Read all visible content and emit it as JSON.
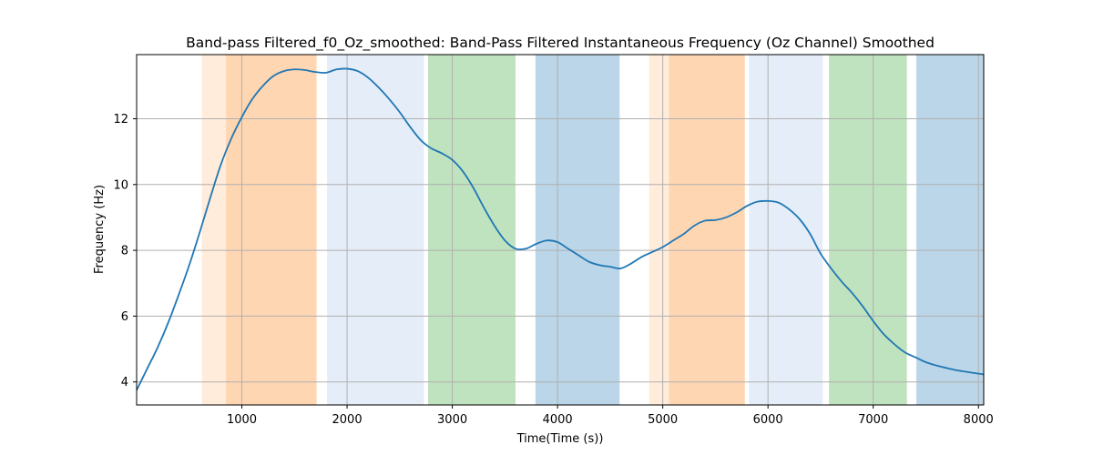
{
  "chart_data": {
    "type": "line",
    "title": "Band-pass Filtered_f0_Oz_smoothed: Band-Pass Filtered Instantaneous Frequency (Oz Channel) Smoothed",
    "xlabel": "Time(Time (s))",
    "ylabel": "Frequency (Hz)",
    "xlim": [
      0,
      8050
    ],
    "ylim": [
      3.3,
      13.95
    ],
    "xticks": [
      1000,
      2000,
      3000,
      4000,
      5000,
      6000,
      7000,
      8000
    ],
    "yticks": [
      4,
      6,
      8,
      10,
      12
    ],
    "grid": true,
    "line_color": "#1f77b4",
    "bands": [
      {
        "start": 620,
        "end": 850,
        "color": "#ff7f0e",
        "opacity": 0.15
      },
      {
        "start": 850,
        "end": 1710,
        "color": "#ff7f0e",
        "opacity": 0.32
      },
      {
        "start": 1810,
        "end": 2730,
        "color": "#aec7e8",
        "opacity": 0.32
      },
      {
        "start": 2770,
        "end": 3600,
        "color": "#2ca02c",
        "opacity": 0.3
      },
      {
        "start": 3790,
        "end": 4590,
        "color": "#1f77b4",
        "opacity": 0.3
      },
      {
        "start": 4870,
        "end": 5060,
        "color": "#ff7f0e",
        "opacity": 0.15
      },
      {
        "start": 5060,
        "end": 5780,
        "color": "#ff7f0e",
        "opacity": 0.32
      },
      {
        "start": 5820,
        "end": 6520,
        "color": "#aec7e8",
        "opacity": 0.32
      },
      {
        "start": 6580,
        "end": 7320,
        "color": "#2ca02c",
        "opacity": 0.3
      },
      {
        "start": 7410,
        "end": 8050,
        "color": "#1f77b4",
        "opacity": 0.3
      }
    ],
    "series": [
      {
        "x": [
          0,
          100,
          200,
          300,
          400,
          500,
          600,
          700,
          800,
          900,
          1000,
          1100,
          1200,
          1300,
          1400,
          1500,
          1600,
          1700,
          1800,
          1900,
          2000,
          2100,
          2200,
          2300,
          2400,
          2500,
          2600,
          2700,
          2800,
          2900,
          3000,
          3100,
          3200,
          3300,
          3400,
          3500,
          3600,
          3700,
          3800,
          3900,
          4000,
          4100,
          4200,
          4300,
          4400,
          4500,
          4600,
          4700,
          4800,
          4900,
          5000,
          5100,
          5200,
          5300,
          5400,
          5500,
          5600,
          5700,
          5800,
          5900,
          6000,
          6100,
          6200,
          6300,
          6400,
          6500,
          6600,
          6700,
          6800,
          6900,
          7000,
          7100,
          7200,
          7300,
          7400,
          7500,
          7600,
          7700,
          7800,
          7900,
          8000,
          8050
        ],
        "y": [
          3.75,
          4.4,
          5.05,
          5.8,
          6.65,
          7.55,
          8.55,
          9.6,
          10.6,
          11.4,
          12.05,
          12.6,
          13.0,
          13.3,
          13.45,
          13.5,
          13.48,
          13.42,
          13.4,
          13.5,
          13.52,
          13.45,
          13.25,
          12.95,
          12.6,
          12.2,
          11.75,
          11.35,
          11.1,
          10.95,
          10.75,
          10.4,
          9.9,
          9.3,
          8.75,
          8.3,
          8.05,
          8.05,
          8.2,
          8.3,
          8.25,
          8.05,
          7.85,
          7.65,
          7.55,
          7.5,
          7.45,
          7.6,
          7.8,
          7.95,
          8.1,
          8.3,
          8.5,
          8.75,
          8.9,
          8.92,
          9.0,
          9.15,
          9.35,
          9.48,
          9.5,
          9.45,
          9.25,
          8.95,
          8.5,
          7.9,
          7.45,
          7.05,
          6.7,
          6.3,
          5.85,
          5.45,
          5.15,
          4.9,
          4.75,
          4.6,
          4.5,
          4.42,
          4.35,
          4.3,
          4.25,
          4.23
        ]
      }
    ]
  }
}
